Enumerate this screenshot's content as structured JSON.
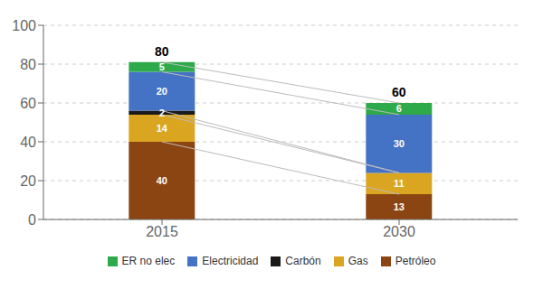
{
  "chart_data": {
    "type": "bar",
    "stacked": true,
    "data_labels": true,
    "grid": true,
    "legend": "bottom",
    "categories": [
      "2015",
      "2030"
    ],
    "series": [
      {
        "name": "Petróleo",
        "color": "#8B4513",
        "values": [
          40,
          13
        ]
      },
      {
        "name": "Gas",
        "color": "#DAA520",
        "values": [
          14,
          11
        ]
      },
      {
        "name": "Carbón",
        "color": "#1a1a1a",
        "values": [
          2,
          0
        ]
      },
      {
        "name": "Electricidad",
        "color": "#4472C4",
        "values": [
          20,
          30
        ]
      },
      {
        "name": "ER no elec",
        "color": "#2EAA4A",
        "values": [
          5,
          6
        ]
      }
    ],
    "totals": [
      80,
      60
    ],
    "ylim": [
      0,
      100
    ],
    "yticks": [
      0,
      20,
      40,
      60,
      80,
      100
    ]
  }
}
